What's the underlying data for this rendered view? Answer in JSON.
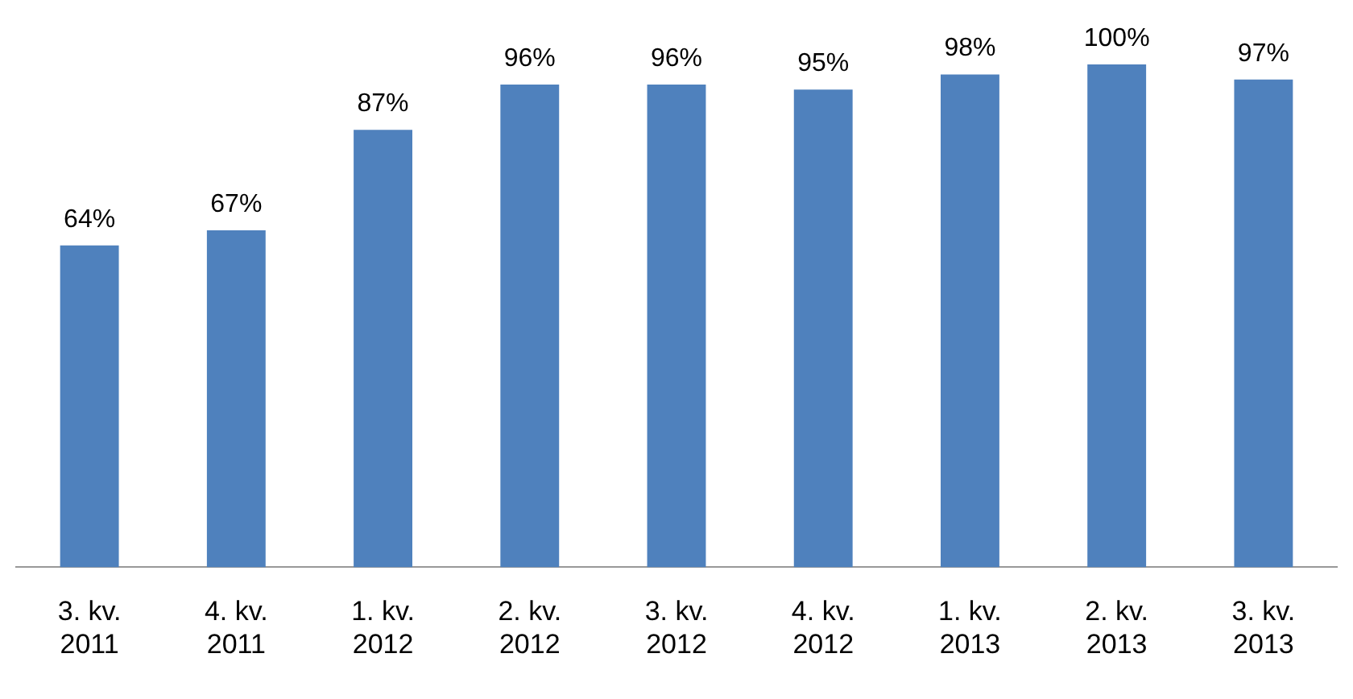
{
  "chart_data": {
    "type": "bar",
    "categories": [
      "3. kv.\n2011",
      "4. kv.\n2011",
      "1. kv.\n2012",
      "2. kv.\n2012",
      "3. kv.\n2012",
      "4. kv.\n2012",
      "1. kv.\n2013",
      "2. kv.\n2013",
      "3. kv.\n2013"
    ],
    "values": [
      64,
      67,
      87,
      96,
      96,
      95,
      98,
      100,
      97
    ],
    "value_labels": [
      "64%",
      "67%",
      "87%",
      "96%",
      "96%",
      "95%",
      "98%",
      "100%",
      "97%"
    ],
    "color": "#4f81bd",
    "grid": false,
    "legend": false
  }
}
